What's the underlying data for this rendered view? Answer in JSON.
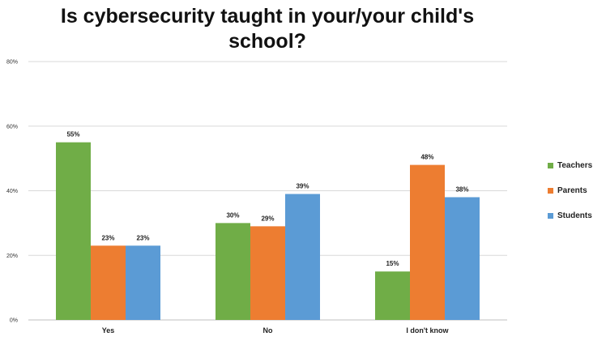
{
  "chart_data": {
    "type": "bar",
    "title": "Is cybersecurity taught in your/your child's school?",
    "xlabel": "",
    "ylabel": "",
    "ylim": [
      0,
      80
    ],
    "yticks": [
      "0%",
      "20%",
      "40%",
      "60%",
      "80%"
    ],
    "grid": true,
    "legend_position": "right",
    "categories": [
      "Yes",
      "No",
      "I don't know"
    ],
    "series": [
      {
        "name": "Teachers",
        "color": "#70ad47",
        "values": [
          55,
          30,
          15
        ],
        "labels": [
          "55%",
          "30%",
          "15%"
        ]
      },
      {
        "name": "Parents",
        "color": "#ed7d31",
        "values": [
          23,
          29,
          48
        ],
        "labels": [
          "23%",
          "29%",
          "48%"
        ]
      },
      {
        "name": "Students",
        "color": "#5b9bd5",
        "values": [
          23,
          39,
          38
        ],
        "labels": [
          "23%",
          "39%",
          "38%"
        ]
      }
    ]
  }
}
